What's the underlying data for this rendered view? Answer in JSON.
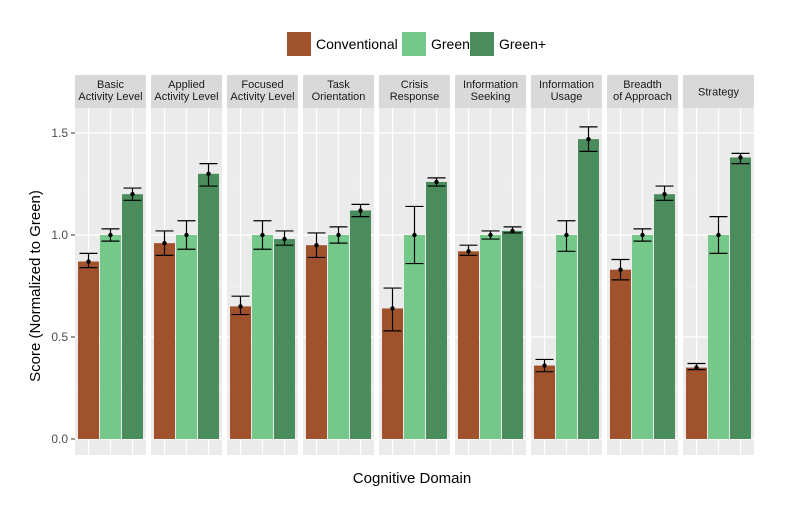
{
  "chart_data": {
    "type": "bar",
    "title": "",
    "xlabel": "Cognitive Domain",
    "ylabel": "Score (Normalized to Green)",
    "ylim": [
      0,
      1.6
    ],
    "yticks": [
      0.0,
      0.5,
      1.0,
      1.5
    ],
    "ytick_labels": [
      "0.0",
      "0.5",
      "1.0",
      "1.5"
    ],
    "grid": true,
    "legend_position": "top",
    "colors": {
      "Conventional": "#a0522d",
      "Green": "#74c98a",
      "Green+": "#4a8c5c",
      "panel_bg": "#ebebeb",
      "strip_bg": "#d9d9d9",
      "grid": "#ffffff"
    },
    "series": [
      {
        "name": "Conventional",
        "values": [
          0.87,
          0.96,
          0.65,
          0.95,
          0.64,
          0.92,
          0.36,
          0.83,
          0.35
        ],
        "err_low": [
          0.84,
          0.9,
          0.61,
          0.89,
          0.53,
          0.9,
          0.33,
          0.78,
          0.34
        ],
        "err_high": [
          0.91,
          1.02,
          0.7,
          1.01,
          0.74,
          0.95,
          0.39,
          0.88,
          0.37
        ]
      },
      {
        "name": "Green",
        "values": [
          1.0,
          1.0,
          1.0,
          1.0,
          1.0,
          1.0,
          1.0,
          1.0,
          1.0
        ],
        "err_low": [
          0.97,
          0.93,
          0.93,
          0.96,
          0.86,
          0.98,
          0.92,
          0.97,
          0.91
        ],
        "err_high": [
          1.03,
          1.07,
          1.07,
          1.04,
          1.14,
          1.02,
          1.07,
          1.03,
          1.09
        ]
      },
      {
        "name": "Green+",
        "values": [
          1.2,
          1.3,
          0.98,
          1.12,
          1.26,
          1.02,
          1.47,
          1.2,
          1.38
        ],
        "err_low": [
          1.17,
          1.24,
          0.95,
          1.09,
          1.24,
          1.01,
          1.41,
          1.17,
          1.35
        ],
        "err_high": [
          1.23,
          1.35,
          1.02,
          1.15,
          1.28,
          1.04,
          1.53,
          1.24,
          1.4
        ]
      }
    ],
    "categories": [
      "Basic Activity Level",
      "Applied Activity Level",
      "Focused Activity Level",
      "Task Orientation",
      "Crisis Response",
      "Information Seeking",
      "Information Usage",
      "Breadth of Approach",
      "Strategy"
    ],
    "facet_labels": [
      [
        "Basic",
        "Activity Level"
      ],
      [
        "Applied",
        "Activity Level"
      ],
      [
        "Focused",
        "Activity Level"
      ],
      [
        "Task",
        "Orientation"
      ],
      [
        "Crisis",
        "Response"
      ],
      [
        "Information",
        "Seeking"
      ],
      [
        "Information",
        "Usage"
      ],
      [
        "Breadth",
        "of Approach"
      ],
      [
        "Strategy"
      ]
    ]
  }
}
